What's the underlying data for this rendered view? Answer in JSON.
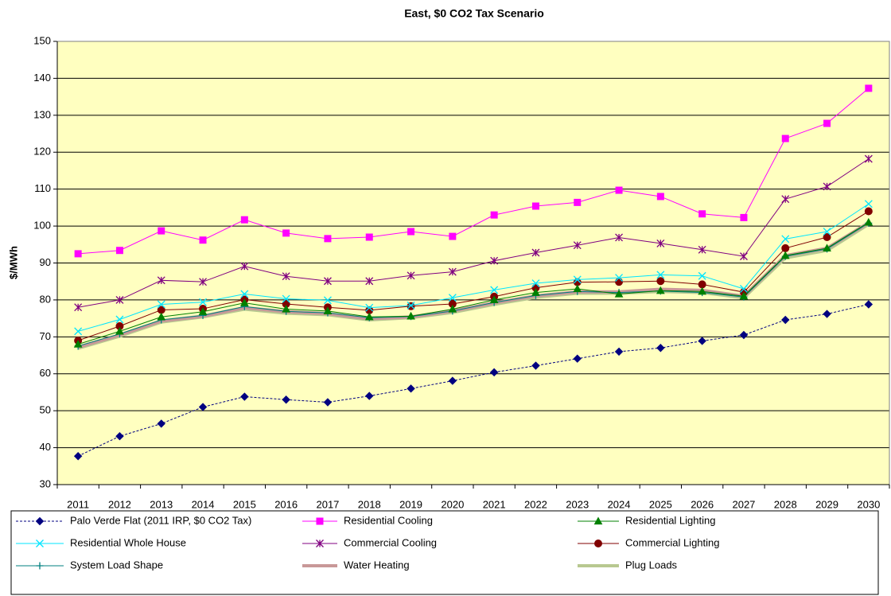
{
  "chart_data": {
    "type": "line",
    "title": "East, $0 CO2 Tax Scenario",
    "y_label": "$/MWh",
    "categories": [
      "2011",
      "2012",
      "2013",
      "2014",
      "2015",
      "2016",
      "2017",
      "2018",
      "2019",
      "2020",
      "2021",
      "2022",
      "2023",
      "2024",
      "2025",
      "2026",
      "2027",
      "2028",
      "2029",
      "2030"
    ],
    "ylim": [
      30,
      150
    ],
    "yticks": [
      30,
      40,
      50,
      60,
      70,
      80,
      90,
      100,
      110,
      120,
      130,
      140,
      150
    ],
    "grid": true,
    "legend": "bottom",
    "plot_background": "#ffffc0",
    "series": [
      {
        "name": "Palo Verde Flat (2011 IRP, $0 CO2 Tax)",
        "color": "#000080",
        "marker": "diamond",
        "line_style": "dashed",
        "line_width": 1,
        "values": [
          37.7,
          43.1,
          46.5,
          51,
          53.8,
          53,
          52.3,
          54,
          56,
          58.1,
          60.4,
          62.2,
          64.1,
          66,
          67,
          68.9,
          70.5,
          74.6,
          76.2,
          78.8
        ]
      },
      {
        "name": "Residential Cooling",
        "color": "#ff00ff",
        "marker": "square",
        "line_style": "solid",
        "line_width": 1,
        "values": [
          92.5,
          93.4,
          98.7,
          96.2,
          101.7,
          98.1,
          96.6,
          97,
          98.5,
          97.2,
          103,
          105.4,
          106.4,
          109.7,
          108,
          103.3,
          102.3,
          123.7,
          127.8,
          137.3
        ]
      },
      {
        "name": "Residential Lighting",
        "color": "#008000",
        "marker": "triangle",
        "line_style": "solid",
        "line_width": 1,
        "values": [
          68,
          71.5,
          75.4,
          76.8,
          79.2,
          77.5,
          77,
          75.4,
          75.6,
          77.5,
          80,
          82,
          83,
          81.6,
          82.5,
          82.3,
          81,
          92,
          94,
          101
        ]
      },
      {
        "name": "Residential Whole House",
        "color": "#00e5ff",
        "marker": "x",
        "line_style": "solid",
        "line_width": 1,
        "values": [
          71.5,
          74.7,
          78.8,
          79.4,
          81.6,
          80.3,
          79.9,
          77.9,
          78.5,
          80.6,
          82.7,
          84.5,
          85.5,
          86,
          86.8,
          86.5,
          83,
          96.5,
          98.5,
          106
        ]
      },
      {
        "name": "Commercial Cooling",
        "color": "#800080",
        "marker": "star",
        "line_style": "solid",
        "line_width": 1,
        "values": [
          78,
          80,
          85.3,
          84.9,
          89.1,
          86.4,
          85.1,
          85.1,
          86.6,
          87.6,
          90.6,
          92.8,
          94.8,
          96.9,
          95.3,
          93.6,
          91.8,
          107.3,
          110.7,
          118.2
        ]
      },
      {
        "name": "Commercial Lighting",
        "color": "#800000",
        "marker": "circle",
        "line_style": "solid",
        "line_width": 1,
        "values": [
          69,
          72.9,
          77.3,
          77.6,
          80.1,
          78.9,
          78,
          77.2,
          78.3,
          78.9,
          80.9,
          83.3,
          84.8,
          84.9,
          85.1,
          84.2,
          82.1,
          94,
          97,
          104
        ]
      },
      {
        "name": "System Load Shape",
        "color": "#008080",
        "marker": "plus",
        "line_style": "solid",
        "line_width": 1,
        "values": [
          67.5,
          70.8,
          74.6,
          75.8,
          78.2,
          76.9,
          76.5,
          75.2,
          75.5,
          77,
          79.3,
          81.2,
          82.3,
          82,
          82.4,
          82,
          80.8,
          91.8,
          93.8,
          100.8
        ]
      },
      {
        "name": "Water Heating",
        "color": "#c89898",
        "marker": "none",
        "line_style": "solid",
        "line_width": 4,
        "values": [
          67.2,
          70.5,
          74.3,
          75.6,
          77.9,
          76.8,
          76.3,
          74.9,
          75.4,
          77,
          79.2,
          81.1,
          82.2,
          82.2,
          82.9,
          82.6,
          81,
          92,
          94,
          100.9
        ]
      },
      {
        "name": "Plug Loads",
        "color": "#b8c890",
        "marker": "none",
        "line_style": "solid",
        "line_width": 4,
        "values": [
          66.9,
          70.2,
          74,
          75.4,
          77.5,
          76.4,
          76,
          74.6,
          75.2,
          76.6,
          78.8,
          80.7,
          81.8,
          81.8,
          82.3,
          82,
          80.6,
          91.4,
          93.4,
          100.5
        ]
      }
    ]
  }
}
